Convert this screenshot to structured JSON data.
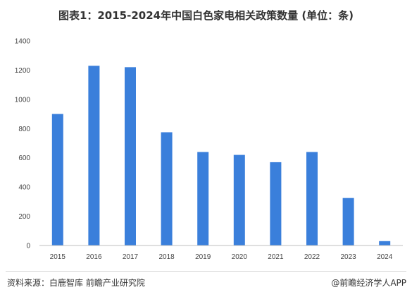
{
  "title": "图表1：2015-2024年中国白色家电相关政策数量 (单位：条)",
  "source": "资料来源：白鹿智库 前瞻产业研究院",
  "brand": "@前瞻经济学人APP",
  "colors": {
    "bar": "#3A7FDB",
    "axis": "#bfbfbf",
    "text": "#444444"
  },
  "chart_data": {
    "type": "bar",
    "categories": [
      "2015",
      "2016",
      "2017",
      "2018",
      "2019",
      "2020",
      "2021",
      "2022",
      "2023",
      "2024"
    ],
    "values": [
      900,
      1230,
      1220,
      775,
      640,
      620,
      570,
      640,
      325,
      30
    ],
    "ylim": [
      0,
      1400
    ],
    "yticks": [
      0,
      200,
      400,
      600,
      800,
      1000,
      1200,
      1400
    ],
    "grid": false
  }
}
